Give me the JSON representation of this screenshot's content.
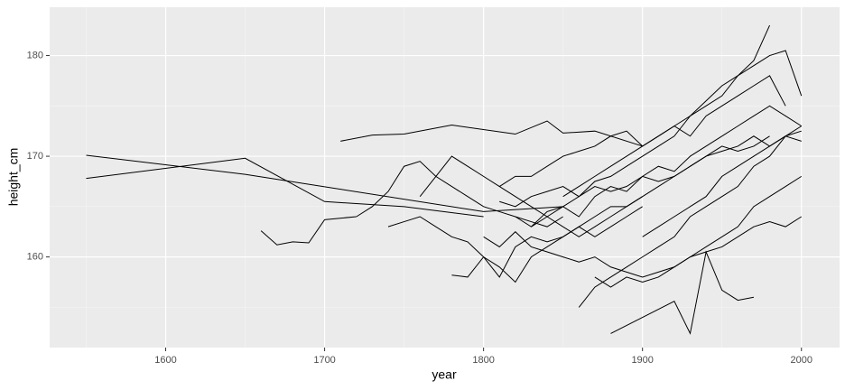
{
  "chart_data": {
    "type": "line",
    "xlabel": "year",
    "ylabel": "height_cm",
    "xlim": [
      1527,
      2024
    ],
    "ylim": [
      151,
      184.8
    ],
    "xticks": [
      1600,
      1700,
      1800,
      1900,
      2000
    ],
    "yticks": [
      160,
      170,
      180
    ],
    "xminor": [
      1550,
      1650,
      1750,
      1850,
      1950
    ],
    "yminor": [
      155,
      165,
      175
    ],
    "grid": true,
    "color": "#000000",
    "series": [
      {
        "x": [
          1550,
          1650,
          1800,
          1850
        ],
        "values": [
          170.1,
          168.2,
          164.5,
          165
        ]
      },
      {
        "x": [
          1550,
          1650,
          1700,
          1750,
          1800
        ],
        "values": [
          167.8,
          169.8,
          165.5,
          165,
          164
        ]
      },
      {
        "x": [
          1710,
          1730,
          1750,
          1780,
          1820,
          1840,
          1850,
          1870,
          1900
        ],
        "values": [
          171.5,
          172.1,
          172.2,
          173.1,
          172.2,
          173.5,
          172.3,
          172.5,
          171
        ]
      },
      {
        "x": [
          1660,
          1670,
          1680,
          1690,
          1700,
          1720
        ],
        "values": [
          162.6,
          161.2,
          161.5,
          161.4,
          163.7,
          164
        ]
      },
      {
        "x": [
          1880,
          1900,
          1920,
          1930,
          1940,
          1950,
          1960,
          1970
        ],
        "values": [
          152.4,
          154,
          155.6,
          152.4,
          160.5,
          156.7,
          155.7,
          156
        ]
      },
      {
        "x": [
          1810,
          1820,
          1830,
          1840,
          1850,
          1860,
          1870,
          1880,
          1890,
          1900,
          1910,
          1920,
          1930,
          1940,
          1950,
          1960,
          1970,
          1980
        ],
        "values": [
          165.5,
          165,
          166,
          166.5,
          167,
          166,
          167.5,
          168,
          169,
          170,
          171,
          172,
          174,
          175.5,
          177,
          178,
          179.5,
          183
        ]
      },
      {
        "x": [
          1820,
          1830,
          1840,
          1850,
          1860,
          1870,
          1880,
          1890,
          1900,
          1910,
          1920,
          1930,
          1940,
          1950,
          1960,
          1970,
          1980,
          1990,
          2000
        ],
        "values": [
          164,
          163,
          164.5,
          165,
          164,
          166,
          167,
          166.5,
          168,
          169,
          168.5,
          170,
          171,
          172,
          173,
          174,
          175,
          174,
          173
        ]
      },
      {
        "x": [
          1800,
          1810,
          1820,
          1830,
          1840,
          1850,
          1860,
          1870,
          1880,
          1890,
          1900,
          1910,
          1920,
          1930,
          1940,
          1950,
          1960,
          1970,
          1980,
          1990,
          2000
        ],
        "values": [
          162,
          161,
          162.5,
          161,
          160.5,
          160,
          159.5,
          160,
          159,
          158.5,
          158,
          158.5,
          159,
          160,
          160.5,
          161,
          162,
          163,
          163.5,
          163,
          164
        ]
      },
      {
        "x": [
          1850,
          1860,
          1870,
          1880,
          1890,
          1900,
          1910,
          1920,
          1930,
          1940,
          1950,
          1960,
          1970,
          1980,
          1990,
          2000
        ],
        "values": [
          166,
          167,
          168,
          169,
          170,
          171,
          172,
          173,
          174,
          175,
          176,
          178,
          179,
          180,
          180.5,
          176
        ]
      },
      {
        "x": [
          1720,
          1730,
          1740,
          1750,
          1760,
          1770,
          1780,
          1790,
          1800,
          1810,
          1820,
          1830,
          1840,
          1850
        ],
        "values": [
          164,
          165,
          166.5,
          169,
          169.5,
          168,
          167,
          166,
          165,
          164.5,
          164,
          163.5,
          163,
          164
        ]
      },
      {
        "x": [
          1740,
          1750,
          1760,
          1770,
          1780,
          1790,
          1800,
          1810,
          1820,
          1830,
          1840,
          1850,
          1860,
          1870,
          1880,
          1890,
          1900
        ],
        "values": [
          163,
          163.5,
          164,
          163,
          162,
          161.5,
          160,
          158,
          161,
          162,
          161.5,
          162,
          163,
          162,
          163,
          164,
          165
        ]
      },
      {
        "x": [
          1860,
          1870,
          1880,
          1890,
          1900,
          1910,
          1920,
          1930,
          1940,
          1950,
          1960,
          1970,
          1980,
          1990,
          2000
        ],
        "values": [
          155,
          157,
          158,
          159,
          160,
          161,
          162,
          164,
          165,
          166,
          167,
          169,
          170,
          172,
          171.5
        ]
      },
      {
        "x": [
          1830,
          1840,
          1850,
          1860,
          1870,
          1880,
          1890,
          1900,
          1910,
          1920,
          1930,
          1940,
          1950,
          1960,
          1970,
          1980,
          1990,
          2000
        ],
        "values": [
          163,
          164,
          165,
          166,
          167,
          166.5,
          167,
          168,
          167.5,
          168,
          169,
          170,
          170.5,
          171,
          172,
          171,
          172,
          173
        ]
      },
      {
        "x": [
          1780,
          1790,
          1800,
          1810,
          1820,
          1830,
          1840,
          1850,
          1860,
          1870,
          1880,
          1890,
          1900,
          1910,
          1920,
          1930,
          1940,
          1950,
          1960,
          1970,
          1980
        ],
        "values": [
          158.2,
          158,
          160,
          159,
          157.5,
          160,
          161,
          162,
          163,
          164,
          165,
          165,
          166,
          167,
          168,
          169,
          170,
          171,
          170.5,
          171,
          172
        ]
      },
      {
        "x": [
          1870,
          1880,
          1890,
          1900,
          1910,
          1920,
          1930,
          1940,
          1950,
          1960,
          1970,
          1980,
          1990,
          2000
        ],
        "values": [
          158,
          157,
          158,
          157.5,
          158,
          159,
          160,
          161,
          162,
          163,
          165,
          166,
          167,
          168
        ]
      },
      {
        "x": [
          1810,
          1820,
          1830,
          1840,
          1850,
          1860,
          1870,
          1880,
          1890,
          1900,
          1910,
          1920,
          1930,
          1940,
          1950,
          1960,
          1970,
          1980,
          1990
        ],
        "values": [
          167,
          168,
          168,
          169,
          170,
          170.5,
          171,
          172,
          172.5,
          171,
          172,
          173,
          172,
          174,
          175,
          176,
          177,
          178,
          175
        ]
      },
      {
        "x": [
          1760,
          1770,
          1780,
          1790,
          1800,
          1810,
          1820,
          1830,
          1840,
          1850,
          1860,
          1870,
          1880,
          1890,
          1900
        ],
        "values": [
          166,
          168,
          170,
          169,
          168,
          167,
          166,
          165,
          164,
          163,
          162,
          163,
          164,
          165,
          166
        ]
      },
      {
        "x": [
          1900,
          1910,
          1920,
          1930,
          1940,
          1950,
          1960,
          1970,
          1980,
          1990,
          2000
        ],
        "values": [
          162,
          163,
          164,
          165,
          166,
          168,
          169,
          170,
          171,
          172,
          172.5
        ]
      }
    ]
  }
}
